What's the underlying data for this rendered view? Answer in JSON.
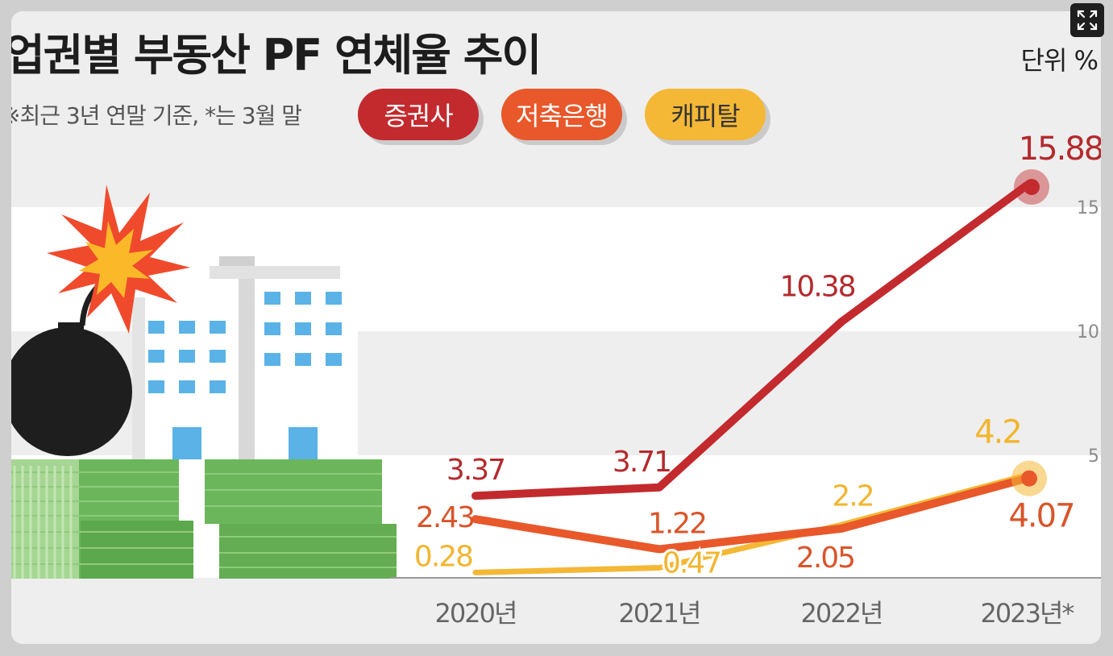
{
  "title": "업권별 부동산 PF 연체율 추이",
  "unit": "단위 %",
  "note": "※최근 3년 연말 기준, *는 3월 말",
  "legend": [
    "증권사",
    "저축은행",
    "캐피탈"
  ],
  "colors": {
    "securities": "#c32a2e",
    "savings": "#e8582a",
    "capital": "#f4b836"
  },
  "icons": [
    "expand-icon",
    "bomb-icon",
    "explosion-icon",
    "building-icon",
    "money-stack-icon"
  ],
  "chart_data": {
    "type": "line",
    "title": "업권별 부동산 PF 연체율 추이",
    "ylabel": "단위 %",
    "categories": [
      "2020년",
      "2021년",
      "2022년",
      "2023년*"
    ],
    "ylim": [
      0,
      15.88
    ],
    "yticks": [
      5,
      10,
      15
    ],
    "series": [
      {
        "name": "증권사",
        "values": [
          3.37,
          3.71,
          10.38,
          15.88
        ],
        "labels": [
          "3.37",
          "3.71",
          "10.38",
          "15.88"
        ]
      },
      {
        "name": "저축은행",
        "values": [
          2.43,
          1.22,
          2.05,
          4.07
        ],
        "labels": [
          "2.43",
          "1.22",
          "2.05",
          "4.07"
        ]
      },
      {
        "name": "캐피탈",
        "values": [
          0.28,
          0.47,
          2.2,
          4.2
        ],
        "labels": [
          "0.28",
          "0.47",
          "2.2",
          "4.2"
        ]
      }
    ]
  }
}
